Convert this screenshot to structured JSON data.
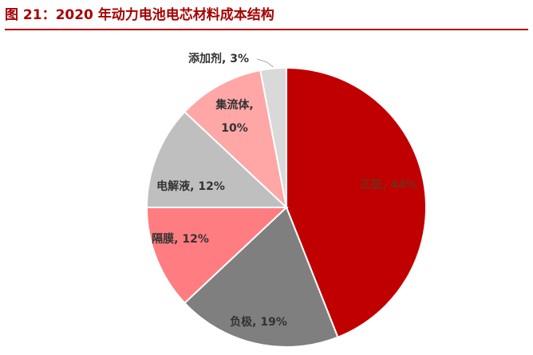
{
  "title": "图 21：2020 年动力电池电芯材料成本结构",
  "chart_data": {
    "type": "pie",
    "start_angle": 0,
    "direction": "clockwise",
    "slices": [
      {
        "name": "正极",
        "value": 44,
        "label": [
          "正极, 44%"
        ],
        "color": "#c00000",
        "label_color": "#7a2a1a"
      },
      {
        "name": "负极",
        "value": 19,
        "label": [
          "负极, 19%"
        ],
        "color": "#7f7f7f",
        "label_color": "#333333"
      },
      {
        "name": "隔膜",
        "value": 12,
        "label": [
          "隔膜, 12%"
        ],
        "color": "#ff7c80",
        "label_color": "#333333"
      },
      {
        "name": "电解液",
        "value": 12,
        "label": [
          "电解液, 12%"
        ],
        "color": "#bfbfbf",
        "label_color": "#333333"
      },
      {
        "name": "集流体",
        "value": 10,
        "label": [
          "集流体,",
          "10%"
        ],
        "color": "#ffa6a6",
        "label_color": "#333333"
      },
      {
        "name": "添加剂",
        "value": 3,
        "label": [
          "添加剂, 3%"
        ],
        "color": "#d9d9d9",
        "label_color": "#333333",
        "outside": true
      }
    ]
  }
}
